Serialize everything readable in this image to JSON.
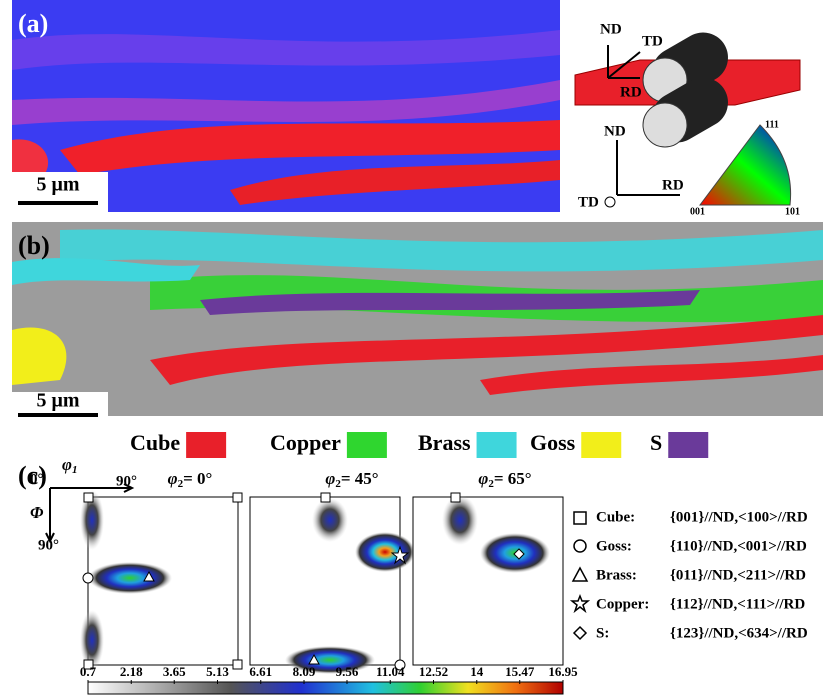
{
  "panel_a": {
    "label": "(a)",
    "scale_bar": "5 μm",
    "axes_top": {
      "nd": "ND",
      "td": "TD",
      "rd": "RD"
    },
    "axes_bottom": {
      "nd": "ND",
      "rd": "RD",
      "td": "TD"
    },
    "ipf": {
      "top": "111",
      "left": "001",
      "right": "101"
    }
  },
  "panel_b": {
    "label": "(b)",
    "scale_bar": "5 μm",
    "legend": [
      {
        "name": "Cube",
        "color": "#e8202a"
      },
      {
        "name": "Copper",
        "color": "#2fd62f"
      },
      {
        "name": "Brass",
        "color": "#3fd6dc"
      },
      {
        "name": "Goss",
        "color": "#f2ee1a"
      },
      {
        "name": "S",
        "color": "#6a3a9a"
      }
    ]
  },
  "panel_c": {
    "label": "(c)",
    "axis": {
      "origin": "0°",
      "phi1": "φ",
      "phi1_sub": "1",
      "phi1_end": "90°",
      "Phi": "Φ",
      "Phi_end": "90°"
    },
    "sections": [
      {
        "symbol": "φ",
        "sub": "2",
        "text": "= 0°"
      },
      {
        "symbol": "φ",
        "sub": "2",
        "text": "= 45°"
      },
      {
        "symbol": "φ",
        "sub": "2",
        "text": "= 65°"
      }
    ],
    "components": [
      {
        "name": "Cube:",
        "orientation": "{001}//ND,<100>//RD"
      },
      {
        "name": "Goss:",
        "orientation": "{110}//ND,<001>//RD"
      },
      {
        "name": "Brass:",
        "orientation": "{011}//ND,<211>//RD"
      },
      {
        "name": "Copper:",
        "orientation": "{112}//ND,<111>//RD"
      },
      {
        "name": "S:",
        "orientation": "{123}//ND,<634>//RD"
      }
    ],
    "colorbar": {
      "ticks": [
        0.7,
        2.18,
        3.65,
        5.13,
        6.61,
        8.09,
        9.56,
        11.04,
        12.52,
        14,
        15.47,
        16.95
      ]
    }
  }
}
